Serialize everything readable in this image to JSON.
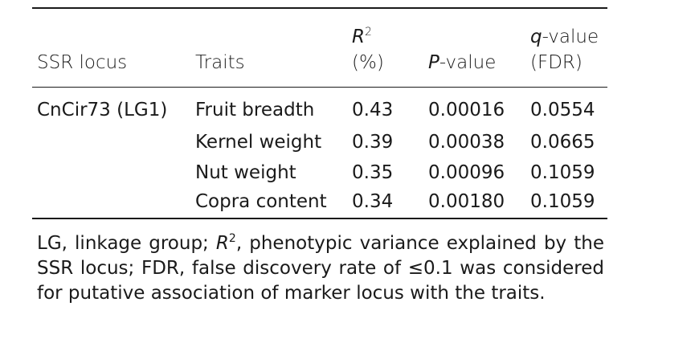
{
  "table": {
    "headers": {
      "locus": "SSR locus",
      "traits": "Traits",
      "r2_symbol": "R",
      "r2_sup": "2",
      "r2_unit": "(%)",
      "p_italic": "P",
      "p_rest": "-value",
      "q_italic": "q",
      "q_rest": "-value",
      "q_unit": "(FDR)"
    },
    "locus": "CnCir73 (LG1)",
    "rows": [
      {
        "trait": "Fruit breadth",
        "r2": "0.43",
        "p": "0.00016",
        "q": "0.0554"
      },
      {
        "trait": "Kernel weight",
        "r2": "0.39",
        "p": "0.00038",
        "q": "0.0665"
      },
      {
        "trait": "Nut weight",
        "r2": "0.35",
        "p": "0.00096",
        "q": "0.1059"
      },
      {
        "trait": "Copra content",
        "r2": "0.34",
        "p": "0.00180",
        "q": "0.1059"
      }
    ]
  },
  "footnote": {
    "part1": "LG, linkage group; ",
    "r_symbol": "R",
    "r_sup": "2",
    "part2": ", phenotypic variance explained by the SSR locus; FDR, false discovery rate of ≤0.1 was considered for putative association of marker locus with the traits."
  }
}
